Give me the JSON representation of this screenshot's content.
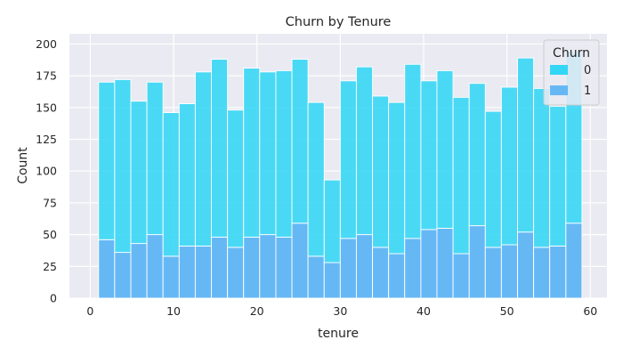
{
  "chart_data": {
    "type": "bar",
    "title": "Churn by Tenure",
    "xlabel": "tenure",
    "ylabel": "Count",
    "xlim": [
      -2.5,
      62
    ],
    "ylim": [
      0,
      208
    ],
    "xticks": [
      0,
      10,
      20,
      30,
      40,
      50,
      60
    ],
    "yticks": [
      0,
      25,
      50,
      75,
      100,
      125,
      150,
      175,
      200
    ],
    "grid": true,
    "stacked": true,
    "legend": {
      "title": "Churn",
      "placement": "top-right"
    },
    "bin_edges": [
      1.0,
      2.93,
      4.87,
      6.8,
      8.73,
      10.67,
      12.6,
      14.53,
      16.47,
      18.4,
      20.33,
      22.27,
      24.2,
      26.13,
      28.07,
      30.0,
      31.93,
      33.87,
      35.8,
      37.73,
      39.67,
      41.6,
      43.53,
      45.47,
      47.4,
      49.33,
      51.27,
      53.2,
      55.13,
      57.07,
      59.0
    ],
    "series": [
      {
        "name": "0",
        "color": "#33d6f5",
        "values": [
          124,
          136,
          112,
          120,
          113,
          112,
          137,
          140,
          108,
          133,
          128,
          131,
          129,
          121,
          65,
          124,
          132,
          119,
          119,
          137,
          117,
          124,
          123,
          112,
          107,
          124,
          137,
          125,
          110,
          135
        ]
      },
      {
        "name": "1",
        "color": "#66b8f5",
        "values": [
          46,
          36,
          43,
          50,
          33,
          41,
          41,
          48,
          40,
          48,
          50,
          48,
          59,
          33,
          28,
          47,
          50,
          40,
          35,
          47,
          54,
          55,
          35,
          57,
          40,
          42,
          52,
          40,
          41,
          59
        ]
      }
    ]
  }
}
